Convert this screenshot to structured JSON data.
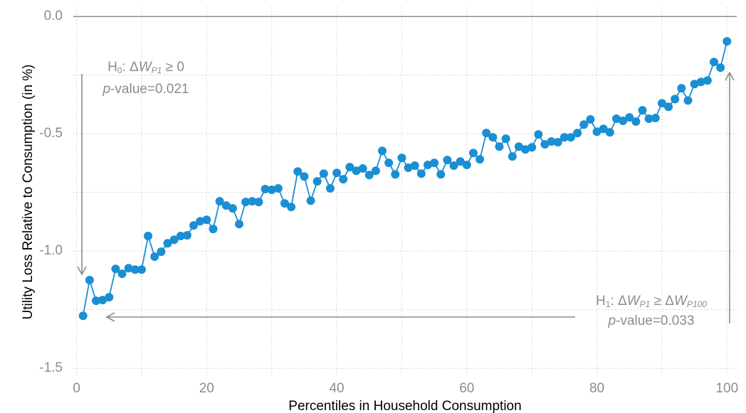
{
  "chart_data": {
    "type": "line",
    "x_label": "Percentiles in Household Consumption",
    "y_label": "Utility Loss Relative to Consumption (in %)",
    "x": [
      1,
      2,
      3,
      4,
      5,
      6,
      7,
      8,
      9,
      10,
      11,
      12,
      13,
      14,
      15,
      16,
      17,
      18,
      19,
      20,
      21,
      22,
      23,
      24,
      25,
      26,
      27,
      28,
      29,
      30,
      31,
      32,
      33,
      34,
      35,
      36,
      37,
      38,
      39,
      40,
      41,
      42,
      43,
      44,
      45,
      46,
      47,
      48,
      49,
      50,
      51,
      52,
      53,
      54,
      55,
      56,
      57,
      58,
      59,
      60,
      61,
      62,
      63,
      64,
      65,
      66,
      67,
      68,
      69,
      70,
      71,
      72,
      73,
      74,
      75,
      76,
      77,
      78,
      79,
      80,
      81,
      82,
      83,
      84,
      85,
      86,
      87,
      88,
      89,
      90,
      91,
      92,
      93,
      94,
      95,
      96,
      97,
      98,
      99,
      100
    ],
    "series": [
      {
        "color": "#1a8fd3",
        "values": [
          -1.276,
          -1.124,
          -1.212,
          -1.209,
          -1.197,
          -1.076,
          -1.097,
          -1.073,
          -1.079,
          -1.079,
          -0.936,
          -1.024,
          -1.003,
          -0.967,
          -0.952,
          -0.936,
          -0.933,
          -0.891,
          -0.873,
          -0.867,
          -0.906,
          -0.788,
          -0.806,
          -0.818,
          -0.885,
          -0.791,
          -0.788,
          -0.791,
          -0.736,
          -0.739,
          -0.733,
          -0.797,
          -0.812,
          -0.661,
          -0.682,
          -0.785,
          -0.703,
          -0.67,
          -0.733,
          -0.667,
          -0.694,
          -0.642,
          -0.658,
          -0.648,
          -0.676,
          -0.658,
          -0.573,
          -0.624,
          -0.673,
          -0.603,
          -0.645,
          -0.636,
          -0.67,
          -0.633,
          -0.624,
          -0.673,
          -0.612,
          -0.636,
          -0.618,
          -0.633,
          -0.582,
          -0.609,
          -0.497,
          -0.515,
          -0.555,
          -0.521,
          -0.597,
          -0.555,
          -0.567,
          -0.558,
          -0.503,
          -0.545,
          -0.533,
          -0.536,
          -0.515,
          -0.515,
          -0.497,
          -0.461,
          -0.439,
          -0.491,
          -0.479,
          -0.494,
          -0.436,
          -0.445,
          -0.43,
          -0.448,
          -0.4,
          -0.436,
          -0.433,
          -0.37,
          -0.385,
          -0.352,
          -0.306,
          -0.358,
          -0.288,
          -0.279,
          -0.273,
          -0.194,
          -0.218,
          -0.106
        ]
      }
    ],
    "xlim": [
      -0.5,
      101.5
    ],
    "xticks": [
      0,
      20,
      40,
      60,
      80,
      100
    ],
    "ylim": [
      -1.53,
      0.04
    ],
    "yticks": [
      {
        "value": 0,
        "label": "0.0"
      },
      {
        "value": -0.5,
        "label": "-0.5"
      },
      {
        "value": -1,
        "label": "-1.0"
      },
      {
        "value": -1.5,
        "label": "-1.5"
      }
    ],
    "reference_line": 0,
    "grid": true,
    "annotations": [
      {
        "lines": [
          [
            "H",
            "0",
            ": Δ",
            "W",
            "P1",
            " ≥ 0"
          ],
          [
            "p",
            "-value=0.021"
          ]
        ]
      },
      {
        "lines": [
          [
            "H",
            "1",
            ": Δ",
            "W",
            "P1",
            " ≥ Δ",
            "W",
            "P100"
          ],
          [
            "p",
            "-value=0.033"
          ]
        ]
      }
    ]
  }
}
